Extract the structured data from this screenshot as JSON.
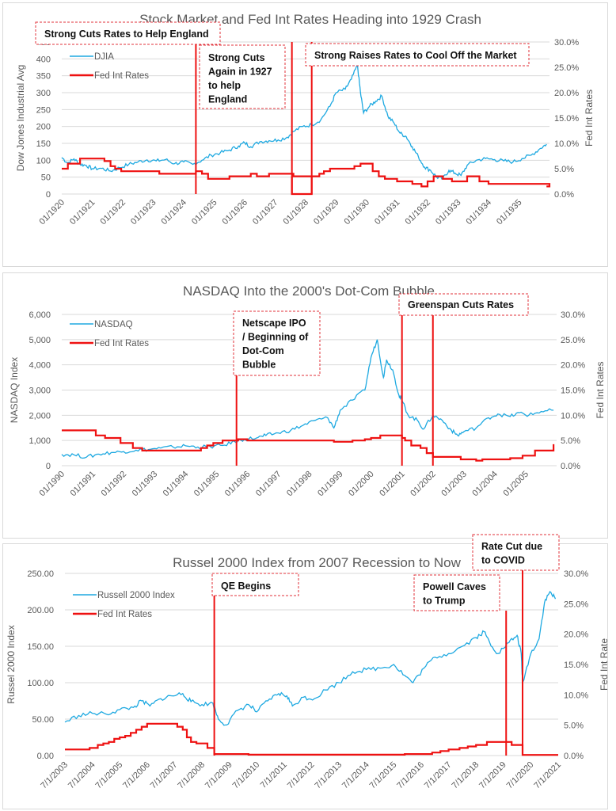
{
  "chart_data": [
    {
      "type": "line",
      "title": "Stock Market and Fed Int Rates Heading into 1929 Crash",
      "xlabel": "",
      "ylabel": "Dow Jones Industrial Avg",
      "y2label": "Fed Int Rates",
      "ylim": [
        0,
        450
      ],
      "y2lim": [
        0,
        0.3
      ],
      "xlim": [
        1920.0,
        1936.0
      ],
      "yticks": [
        "0",
        "50",
        "100",
        "150",
        "200",
        "250",
        "300",
        "350",
        "400",
        "450"
      ],
      "y2ticks": [
        "0.0%",
        "5.0%",
        "10.0%",
        "15.0%",
        "20.0%",
        "25.0%",
        "30.0%"
      ],
      "xticks": [
        "01/1920",
        "01/1921",
        "01/1922",
        "01/1923",
        "01/1924",
        "01/1925",
        "01/1926",
        "01/1927",
        "01/1928",
        "01/1929",
        "01/1930",
        "01/1931",
        "01/1932",
        "01/1933",
        "01/1934",
        "01/1935"
      ],
      "grid": true,
      "legend_position": "top-left",
      "legend": [
        "DJIA",
        "Fed Int Rates"
      ],
      "series": [
        {
          "name": "DJIA",
          "axis": "left",
          "color": "#1ea9e1",
          "x": [
            1920.0,
            1920.2,
            1920.4,
            1920.6,
            1920.8,
            1921.0,
            1921.3,
            1921.6,
            1921.9,
            1922.2,
            1922.5,
            1922.8,
            1923.1,
            1923.4,
            1923.7,
            1924.0,
            1924.3,
            1924.6,
            1924.9,
            1925.2,
            1925.5,
            1925.8,
            1926.0,
            1926.2,
            1926.5,
            1926.8,
            1927.1,
            1927.4,
            1927.6,
            1927.9,
            1928.2,
            1928.5,
            1928.8,
            1929.0,
            1929.3,
            1929.5,
            1929.7,
            1929.8,
            1929.9,
            1930.1,
            1930.3,
            1930.5,
            1930.7,
            1930.9,
            1931.1,
            1931.3,
            1931.5,
            1931.7,
            1931.9,
            1932.1,
            1932.3,
            1932.5,
            1932.7,
            1932.9,
            1933.1,
            1933.3,
            1933.6,
            1933.9,
            1934.2,
            1934.5,
            1934.8,
            1935.1,
            1935.4,
            1935.7,
            1935.9
          ],
          "y": [
            108,
            92,
            104,
            88,
            85,
            75,
            76,
            68,
            78,
            88,
            95,
            101,
            98,
            102,
            90,
            95,
            88,
            100,
            115,
            122,
            130,
            142,
            152,
            140,
            155,
            158,
            160,
            168,
            185,
            200,
            205,
            220,
            260,
            300,
            310,
            340,
            381,
            300,
            240,
            260,
            275,
            290,
            230,
            210,
            180,
            170,
            140,
            110,
            80,
            70,
            50,
            45,
            70,
            62,
            55,
            85,
            100,
            105,
            102,
            98,
            95,
            105,
            115,
            135,
            148
          ]
        },
        {
          "name": "Fed Int Rates",
          "axis": "right",
          "color": "#ee1111",
          "step": true,
          "x": [
            1920.0,
            1920.2,
            1920.4,
            1920.6,
            1921.4,
            1921.6,
            1921.75,
            1921.95,
            1922.5,
            1923.2,
            1924.4,
            1924.6,
            1924.8,
            1925.5,
            1926.0,
            1926.2,
            1926.4,
            1926.8,
            1927.5,
            1927.6,
            1928.3,
            1928.45,
            1928.6,
            1928.8,
            1929.6,
            1929.8,
            1930.0,
            1930.2,
            1930.4,
            1930.6,
            1931.0,
            1931.5,
            1931.8,
            1932.0,
            1932.2,
            1932.5,
            1932.8,
            1933.1,
            1933.3,
            1933.7,
            1934.0,
            1936.0
          ],
          "y": [
            0.05,
            0.06,
            0.06,
            0.07,
            0.065,
            0.055,
            0.05,
            0.045,
            0.045,
            0.04,
            0.045,
            0.04,
            0.03,
            0.035,
            0.035,
            0.04,
            0.035,
            0.04,
            0.04,
            0.035,
            0.035,
            0.04,
            0.045,
            0.05,
            0.055,
            0.06,
            0.06,
            0.045,
            0.035,
            0.03,
            0.025,
            0.02,
            0.015,
            0.025,
            0.035,
            0.03,
            0.025,
            0.025,
            0.035,
            0.025,
            0.02,
            0.015
          ]
        }
      ],
      "vertical_markers": [
        1924.4,
        1927.55,
        1928.2
      ],
      "zero_dip": {
        "from": 1927.55,
        "to": 1928.2
      },
      "annotations": [
        {
          "lines": [
            "Strong Cuts Rates to Help England"
          ]
        },
        {
          "lines": [
            "Strong Cuts",
            "Again in 1927",
            "to help",
            "England"
          ]
        },
        {
          "lines": [
            "Strong Raises Rates to Cool Off the Market"
          ]
        }
      ]
    },
    {
      "type": "line",
      "title": "NASDAQ Into the 2000's Dot-Com Bubble",
      "xlabel": "",
      "ylabel": "NASDAQ Index",
      "y2label": "Fed Int Rates",
      "ylim": [
        0,
        6000
      ],
      "y2lim": [
        0,
        0.3
      ],
      "xlim": [
        1990.0,
        2006.0
      ],
      "yticks": [
        "0",
        "1,000",
        "2,000",
        "3,000",
        "4,000",
        "5,000",
        "6,000"
      ],
      "y2ticks": [
        "0.0%",
        "5.0%",
        "10.0%",
        "15.0%",
        "20.0%",
        "25.0%",
        "30.0%"
      ],
      "xticks": [
        "01/1990",
        "01/1991",
        "01/1992",
        "01/1993",
        "01/1994",
        "01/1995",
        "01/1996",
        "01/1997",
        "01/1998",
        "01/1999",
        "01/2000",
        "01/2001",
        "01/2002",
        "01/2003",
        "01/2004",
        "01/2005"
      ],
      "grid": true,
      "legend_position": "top-left",
      "legend": [
        "NASDAQ",
        "Fed Int Rates"
      ],
      "series": [
        {
          "name": "NASDAQ",
          "axis": "left",
          "color": "#1ea9e1",
          "x": [
            1990.0,
            1990.4,
            1990.8,
            1991.2,
            1991.6,
            1992.0,
            1992.4,
            1992.8,
            1993.2,
            1993.6,
            1994.0,
            1994.4,
            1994.8,
            1995.2,
            1995.6,
            1995.9,
            1996.3,
            1996.6,
            1997.0,
            1997.4,
            1997.8,
            1998.2,
            1998.6,
            1998.8,
            1999.0,
            1999.4,
            1999.8,
            2000.0,
            2000.2,
            2000.4,
            2000.5,
            2000.7,
            2000.9,
            2001.0,
            2001.2,
            2001.5,
            2001.7,
            2002.0,
            2002.3,
            2002.6,
            2002.8,
            2003.0,
            2003.4,
            2003.8,
            2004.1,
            2004.5,
            2004.8,
            2005.1,
            2005.5,
            2005.9
          ],
          "y": [
            450,
            430,
            340,
            460,
            520,
            560,
            620,
            640,
            700,
            740,
            790,
            740,
            760,
            800,
            950,
            1050,
            1100,
            1200,
            1300,
            1400,
            1600,
            1800,
            1900,
            1500,
            2200,
            2600,
            3000,
            4300,
            5000,
            3500,
            4200,
            3800,
            2800,
            2600,
            2000,
            1800,
            1450,
            2000,
            1800,
            1400,
            1200,
            1350,
            1500,
            1900,
            2050,
            1950,
            2100,
            2000,
            2150,
            2200
          ]
        },
        {
          "name": "Fed Int Rates",
          "axis": "right",
          "color": "#ee1111",
          "step": true,
          "x": [
            1990.0,
            1991.1,
            1991.4,
            1991.9,
            1992.3,
            1992.6,
            1994.5,
            1994.7,
            1994.9,
            1995.2,
            1995.7,
            1996.0,
            1998.8,
            1999.4,
            1999.8,
            2000.0,
            2000.3,
            2001.0,
            2001.1,
            2001.3,
            2001.6,
            2001.8,
            2002.0,
            2002.9,
            2003.4,
            2003.6,
            2004.5,
            2004.9,
            2005.3,
            2005.9
          ],
          "y": [
            0.07,
            0.06,
            0.055,
            0.045,
            0.035,
            0.03,
            0.035,
            0.04,
            0.045,
            0.05,
            0.0525,
            0.05,
            0.0475,
            0.05,
            0.0525,
            0.055,
            0.06,
            0.055,
            0.05,
            0.04,
            0.035,
            0.025,
            0.0175,
            0.0125,
            0.01,
            0.0125,
            0.015,
            0.02,
            0.03,
            0.0425
          ]
        }
      ],
      "vertical_markers": [
        1995.65,
        2001.0,
        2002.0
      ],
      "annotations": [
        {
          "lines": [
            "Netscape IPO",
            "/ Beginning of",
            "Dot-Com",
            "Bubble"
          ]
        },
        {
          "lines": [
            "Greenspan Cuts Rates"
          ]
        }
      ]
    },
    {
      "type": "line",
      "title": "Russel 2000 Index from 2007 Recession to Now",
      "xlabel": "",
      "ylabel": "Russel 2000 Index",
      "y2label": "Fed Int Rate",
      "ylim": [
        0,
        250
      ],
      "y2lim": [
        0,
        0.3
      ],
      "xlim": [
        2003.5,
        2021.5
      ],
      "yticks": [
        "0.00",
        "50.00",
        "100.00",
        "150.00",
        "200.00",
        "250.00"
      ],
      "y2ticks": [
        "0.0%",
        "5.0%",
        "10.0%",
        "15.0%",
        "20.0%",
        "25.0%",
        "30.0%"
      ],
      "xticks": [
        "7/1/2003",
        "7/1/2004",
        "7/1/2005",
        "7/1/2006",
        "7/1/2007",
        "7/1/2008",
        "7/1/2009",
        "7/1/2010",
        "7/1/2011",
        "7/1/2012",
        "7/1/2013",
        "7/1/2014",
        "7/1/2015",
        "7/1/2016",
        "7/1/2017",
        "7/1/2018",
        "7/1/2019",
        "7/1/2020",
        "7/1/2021"
      ],
      "grid": true,
      "legend_position": "top-left",
      "legend": [
        "Russell 2000 Index",
        "Fed Int Rates"
      ],
      "series": [
        {
          "name": "Russell 2000 Index",
          "axis": "left",
          "color": "#1ea9e1",
          "x": [
            2003.5,
            2004.0,
            2004.5,
            2005.0,
            2005.5,
            2006.0,
            2006.3,
            2006.6,
            2007.0,
            2007.4,
            2007.8,
            2008.1,
            2008.5,
            2008.9,
            2009.1,
            2009.4,
            2009.8,
            2010.2,
            2010.5,
            2010.9,
            2011.3,
            2011.6,
            2011.8,
            2012.2,
            2012.6,
            2013.0,
            2013.5,
            2014.0,
            2014.5,
            2015.0,
            2015.5,
            2015.9,
            2016.2,
            2016.6,
            2017.0,
            2017.5,
            2018.0,
            2018.5,
            2018.8,
            2019.0,
            2019.3,
            2019.7,
            2020.0,
            2020.15,
            2020.2,
            2020.5,
            2020.8,
            2021.0,
            2021.2,
            2021.4
          ],
          "y": [
            46,
            55,
            58,
            57,
            63,
            66,
            75,
            68,
            78,
            82,
            85,
            74,
            70,
            72,
            50,
            42,
            62,
            70,
            60,
            75,
            85,
            82,
            68,
            80,
            78,
            90,
            100,
            115,
            118,
            120,
            125,
            110,
            100,
            120,
            135,
            140,
            150,
            162,
            170,
            155,
            140,
            155,
            165,
            140,
            100,
            140,
            160,
            210,
            225,
            215
          ]
        },
        {
          "name": "Fed Int Rates",
          "axis": "right",
          "color": "#ee1111",
          "step": true,
          "x": [
            2003.5,
            2004.4,
            2004.7,
            2004.9,
            2005.1,
            2005.3,
            2005.5,
            2005.7,
            2005.9,
            2006.1,
            2006.3,
            2006.5,
            2007.6,
            2007.8,
            2007.95,
            2008.1,
            2008.3,
            2008.7,
            2008.95,
            2010.2,
            2015.9,
            2016.9,
            2017.2,
            2017.5,
            2017.9,
            2018.2,
            2018.5,
            2018.9,
            2019.5,
            2019.8,
            2020.2,
            2021.5
          ],
          "y": [
            0.01,
            0.0125,
            0.0175,
            0.02,
            0.0225,
            0.0275,
            0.03,
            0.0325,
            0.0375,
            0.0425,
            0.0475,
            0.0525,
            0.0475,
            0.0425,
            0.03,
            0.0225,
            0.02,
            0.0125,
            0.0025,
            0.0015,
            0.0025,
            0.005,
            0.0075,
            0.01,
            0.0125,
            0.015,
            0.0175,
            0.0225,
            0.0225,
            0.0175,
            0.001,
            0.001
          ]
        }
      ],
      "vertical_markers": [
        2008.95,
        2019.6,
        2020.2
      ],
      "annotations": [
        {
          "lines": [
            "QE Begins"
          ]
        },
        {
          "lines": [
            "Powell Caves",
            "to Trump"
          ]
        },
        {
          "lines": [
            "Rate Cut due",
            "to COVID"
          ]
        }
      ]
    }
  ]
}
